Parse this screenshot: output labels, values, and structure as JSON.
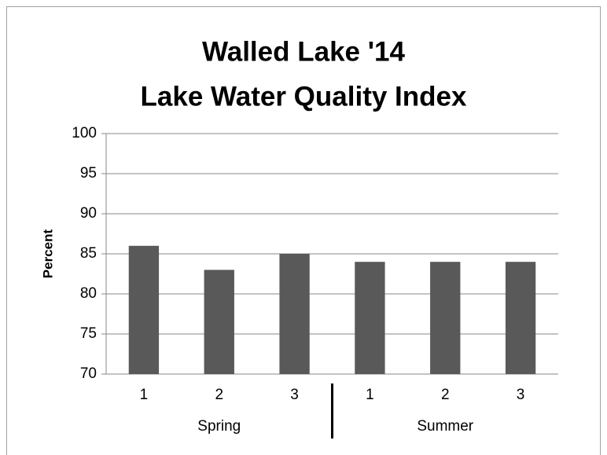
{
  "chart_data": {
    "type": "bar",
    "title": [
      "Walled Lake '14",
      "Lake Water Quality Index"
    ],
    "categories": [
      "1",
      "2",
      "3",
      "1",
      "2",
      "3"
    ],
    "category_groups": [
      "Spring",
      "Summer"
    ],
    "values": [
      86,
      83,
      85,
      84,
      84,
      84
    ],
    "color": "#595959",
    "ylabel": "Percent",
    "ylim": [
      70,
      100
    ],
    "yticks": [
      70,
      75,
      80,
      85,
      90,
      95,
      100
    ],
    "grid": true
  }
}
